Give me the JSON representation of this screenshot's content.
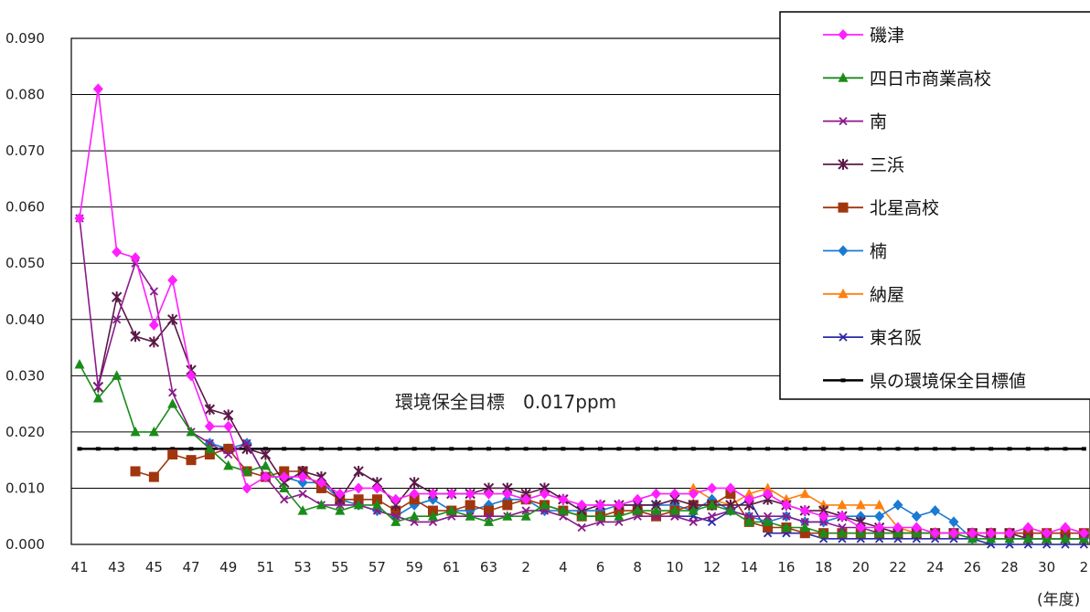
{
  "chart_data": {
    "type": "line",
    "title": "",
    "xlabel": "(年度)",
    "ylabel": "",
    "ylim": [
      0,
      0.09
    ],
    "y_ticks": [
      "0.000",
      "0.010",
      "0.020",
      "0.030",
      "0.040",
      "0.050",
      "0.060",
      "0.070",
      "0.080",
      "0.090"
    ],
    "x_years": [
      "41",
      "42",
      "43",
      "44",
      "45",
      "46",
      "47",
      "48",
      "49",
      "50",
      "51",
      "52",
      "53",
      "54",
      "55",
      "56",
      "57",
      "58",
      "59",
      "60",
      "61",
      "62",
      "63",
      "元",
      "2",
      "3",
      "4",
      "5",
      "6",
      "7",
      "8",
      "9",
      "10",
      "11",
      "12",
      "13",
      "14",
      "15",
      "16",
      "17",
      "18",
      "19",
      "20",
      "21",
      "22",
      "23",
      "24",
      "25",
      "26",
      "27",
      "28",
      "29",
      "30",
      "元",
      "2"
    ],
    "x_tick_labels": [
      "41",
      "43",
      "45",
      "47",
      "49",
      "51",
      "53",
      "55",
      "57",
      "59",
      "61",
      "63",
      "2",
      "4",
      "6",
      "8",
      "10",
      "12",
      "14",
      "16",
      "18",
      "20",
      "22",
      "24",
      "26",
      "28",
      "30",
      "2"
    ],
    "x_tick_indices": [
      0,
      2,
      4,
      6,
      8,
      10,
      12,
      14,
      16,
      18,
      20,
      22,
      24,
      26,
      28,
      30,
      32,
      34,
      36,
      38,
      40,
      42,
      44,
      46,
      48,
      50,
      52,
      54
    ],
    "grid": true,
    "legend_position": "top-right",
    "annotation": "環境保全目標　0.017ppm",
    "series": [
      {
        "name": "磯津",
        "color": "#ff1fff",
        "marker": "diamond",
        "start": 0,
        "values": [
          0.058,
          0.081,
          0.052,
          0.051,
          0.039,
          0.047,
          0.03,
          0.021,
          0.021,
          0.01,
          0.012,
          0.012,
          0.012,
          0.011,
          0.009,
          0.01,
          0.01,
          0.008,
          0.009,
          0.009,
          0.009,
          0.009,
          0.009,
          0.009,
          0.008,
          0.009,
          0.008,
          0.007,
          0.007,
          0.007,
          0.008,
          0.009,
          0.009,
          0.009,
          0.01,
          0.01,
          0.008,
          0.009,
          0.007,
          0.006,
          0.005,
          0.005,
          0.003,
          0.003,
          0.003,
          0.003,
          0.002,
          0.002,
          0.002,
          0.002,
          0.002,
          0.003,
          0.002,
          0.003,
          0.002
        ]
      },
      {
        "name": "四日市商業高校",
        "color": "#1a8c1a",
        "marker": "triangle",
        "start": 0,
        "values": [
          0.032,
          0.026,
          0.03,
          0.02,
          0.02,
          0.025,
          0.02,
          0.017,
          0.014,
          0.013,
          0.014,
          0.01,
          0.006,
          0.007,
          0.006,
          0.007,
          0.007,
          0.004,
          0.005,
          0.005,
          0.006,
          0.005,
          0.004,
          0.005,
          0.005,
          0.007,
          0.006,
          0.005,
          0.005,
          0.005,
          0.006,
          0.006,
          0.006,
          0.006,
          0.007,
          0.006,
          0.004,
          0.004,
          0.003,
          0.003,
          0.002,
          0.002,
          0.002,
          0.002,
          0.002,
          0.002,
          0.002,
          0.002,
          0.001,
          0.001,
          0.001,
          0.001,
          0.001,
          0.001,
          0.001
        ]
      },
      {
        "name": "南",
        "color": "#8b1a8b",
        "marker": "x",
        "start": 0,
        "values": [
          0.058,
          0.028,
          0.04,
          0.05,
          0.045,
          0.027,
          0.02,
          0.018,
          0.016,
          0.018,
          0.012,
          0.008,
          0.009,
          0.007,
          0.007,
          0.007,
          0.006,
          0.005,
          0.004,
          0.004,
          0.005,
          0.005,
          0.005,
          0.005,
          0.006,
          0.006,
          0.005,
          0.003,
          0.004,
          0.004,
          0.005,
          0.005,
          0.005,
          0.004,
          0.005,
          0.006,
          0.005,
          0.005,
          0.005,
          0.004,
          0.004,
          0.003,
          0.003,
          0.002,
          0.002,
          0.002,
          0.002,
          0.002,
          0.002,
          0.001,
          0.001,
          0.001,
          0.001,
          0.001,
          0.001
        ]
      },
      {
        "name": "三浜",
        "color": "#5a1846",
        "marker": "asterisk",
        "start": 1,
        "values": [
          0.028,
          0.044,
          0.037,
          0.036,
          0.04,
          0.031,
          0.024,
          0.023,
          0.017,
          0.016,
          0.011,
          0.013,
          0.012,
          0.008,
          0.013,
          0.011,
          0.007,
          0.011,
          0.009,
          0.009,
          0.009,
          0.01,
          0.01,
          0.009,
          0.01,
          0.008,
          0.006,
          0.007,
          0.007,
          0.007,
          0.007,
          0.008,
          0.007,
          0.007,
          0.007,
          0.007,
          0.008,
          0.007,
          0.006,
          0.006,
          0.005,
          0.004,
          0.003,
          0.002,
          0.002,
          0.002,
          0.002,
          0.002,
          0.002,
          0.002,
          0.001,
          0.001,
          0.001,
          0.001
        ]
      },
      {
        "name": "北星高校",
        "color": "#a0360e",
        "marker": "square",
        "start": 3,
        "values": [
          0.013,
          0.012,
          0.016,
          0.015,
          0.016,
          0.017,
          0.013,
          0.012,
          0.013,
          0.013,
          0.01,
          0.008,
          0.008,
          0.008,
          0.006,
          0.008,
          0.006,
          0.006,
          0.007,
          0.006,
          0.007,
          0.008,
          0.007,
          0.006,
          0.005,
          0.005,
          0.006,
          0.006,
          0.005,
          0.006,
          0.007,
          0.007,
          0.009,
          0.004,
          0.003,
          0.003,
          0.002,
          0.002,
          0.002,
          0.002,
          0.002,
          0.002,
          0.002,
          0.002,
          0.002,
          0.002,
          0.002,
          0.002,
          0.002,
          0.002,
          0.002,
          0.002
        ]
      },
      {
        "name": "楠",
        "color": "#1a7ad4",
        "marker": "diamond",
        "start": 7,
        "values": [
          0.018,
          0.017,
          0.018,
          0.012,
          0.012,
          0.011,
          0.011,
          0.008,
          0.007,
          0.006,
          0.005,
          0.007,
          0.008,
          0.006,
          0.006,
          0.007,
          0.008,
          0.008,
          0.006,
          0.006,
          0.006,
          0.006,
          0.007,
          0.007,
          0.007,
          0.007,
          0.006,
          0.008,
          0.006,
          0.005,
          0.004,
          0.005,
          0.004,
          0.004,
          0.005,
          0.005,
          0.005,
          0.007,
          0.005,
          0.006,
          0.004,
          0.001,
          0.001,
          0.001,
          0.001,
          0.001,
          0.001,
          0.001
        ]
      },
      {
        "name": "納屋",
        "color": "#ff7f0e",
        "marker": "triangle",
        "start": 33,
        "values": [
          0.01,
          0.008,
          0.007,
          0.009,
          0.01,
          0.008,
          0.009,
          0.007,
          0.007,
          0.007,
          0.007,
          0.003,
          0.002,
          0.002,
          0.002,
          0.002,
          0.002,
          0.002,
          0.002,
          0.002,
          0.002,
          0.002
        ]
      },
      {
        "name": "東名阪",
        "color": "#2a2aa8",
        "marker": "x",
        "start": 32,
        "values": [
          0.005,
          0.005,
          0.004,
          0.006,
          0.008,
          0.002,
          0.002,
          0.002,
          0.001,
          0.001,
          0.001,
          0.001,
          0.001,
          0.001,
          0.001,
          0.001,
          0.001,
          0.0,
          0.0,
          0.0,
          0.0,
          0.0,
          0.0
        ]
      },
      {
        "name": "県の環境保全目標値",
        "color": "#000000",
        "marker": "dash",
        "start": 0,
        "constant": 0.017
      }
    ]
  }
}
